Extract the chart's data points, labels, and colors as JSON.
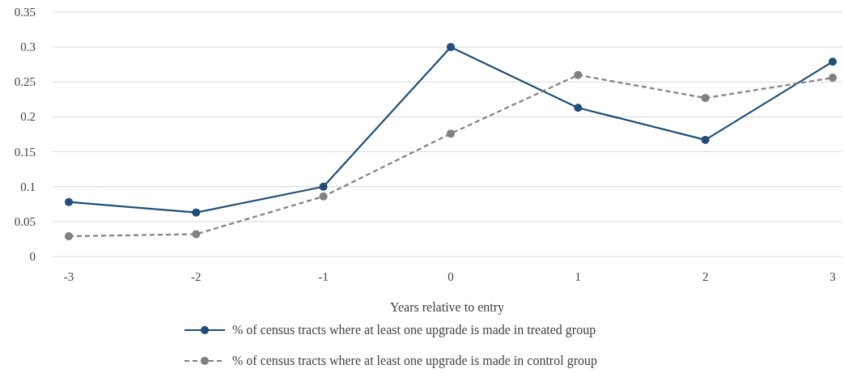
{
  "chart_data": {
    "type": "line",
    "xlabel": "Years relative to entry",
    "categories": [
      "-3",
      "-2",
      "-1",
      "0",
      "1",
      "2",
      "3"
    ],
    "series": [
      {
        "name": "% of census tracts where at least one upgrade is made in treated group",
        "color": "#1f4e79",
        "line_style": "solid",
        "values": [
          0.078,
          0.063,
          0.1,
          0.3,
          0.213,
          0.167,
          0.279
        ]
      },
      {
        "name": "% of census tracts where at least one upgrade is made in control group",
        "color": "#808080",
        "line_style": "dashed",
        "values": [
          0.029,
          0.032,
          0.086,
          0.176,
          0.26,
          0.227,
          0.256
        ]
      }
    ],
    "ylim": [
      0,
      0.35
    ],
    "yticks": [
      0,
      0.05,
      0.1,
      0.15,
      0.2,
      0.25,
      0.3,
      0.35
    ],
    "grid": "y",
    "legend": "bottom",
    "marker": "circle"
  }
}
